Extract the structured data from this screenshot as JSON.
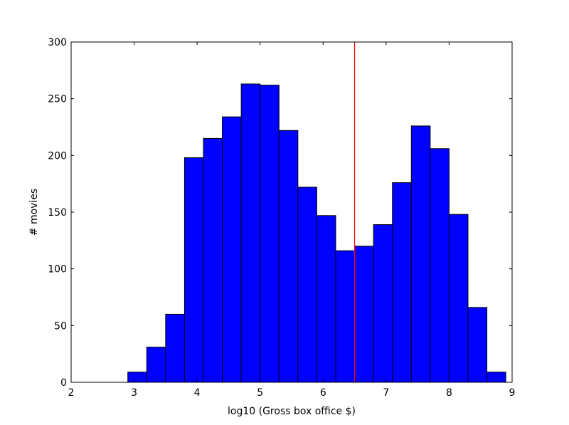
{
  "chart_data": {
    "type": "bar",
    "title": "",
    "xlabel": "log10 (Gross box office $)",
    "ylabel": "# movies",
    "xlim": [
      2,
      9
    ],
    "ylim": [
      0,
      300
    ],
    "x_ticks": [
      2,
      3,
      4,
      5,
      6,
      7,
      8,
      9
    ],
    "y_ticks": [
      0,
      50,
      100,
      150,
      200,
      250,
      300
    ],
    "grid": false,
    "bar_color": "#0000ff",
    "bar_edge_color": "#000000",
    "bins": [
      {
        "x0": 2.9,
        "x1": 3.2,
        "value": 9
      },
      {
        "x0": 3.2,
        "x1": 3.5,
        "value": 31
      },
      {
        "x0": 3.5,
        "x1": 3.8,
        "value": 60
      },
      {
        "x0": 3.8,
        "x1": 4.1,
        "value": 198
      },
      {
        "x0": 4.1,
        "x1": 4.4,
        "value": 215
      },
      {
        "x0": 4.4,
        "x1": 4.7,
        "value": 234
      },
      {
        "x0": 4.7,
        "x1": 5.0,
        "value": 263
      },
      {
        "x0": 5.0,
        "x1": 5.3,
        "value": 262
      },
      {
        "x0": 5.3,
        "x1": 5.6,
        "value": 222
      },
      {
        "x0": 5.6,
        "x1": 5.9,
        "value": 172
      },
      {
        "x0": 5.9,
        "x1": 6.2,
        "value": 147
      },
      {
        "x0": 6.2,
        "x1": 6.5,
        "value": 116
      },
      {
        "x0": 6.5,
        "x1": 6.8,
        "value": 120
      },
      {
        "x0": 6.8,
        "x1": 7.1,
        "value": 139
      },
      {
        "x0": 7.1,
        "x1": 7.4,
        "value": 176
      },
      {
        "x0": 7.4,
        "x1": 7.7,
        "value": 226
      },
      {
        "x0": 7.7,
        "x1": 8.0,
        "value": 206
      },
      {
        "x0": 8.0,
        "x1": 8.3,
        "value": 148
      },
      {
        "x0": 8.3,
        "x1": 8.6,
        "value": 66
      },
      {
        "x0": 8.6,
        "x1": 8.9,
        "value": 9
      }
    ],
    "vline": {
      "x": 6.5,
      "color": "#ff0000"
    }
  }
}
